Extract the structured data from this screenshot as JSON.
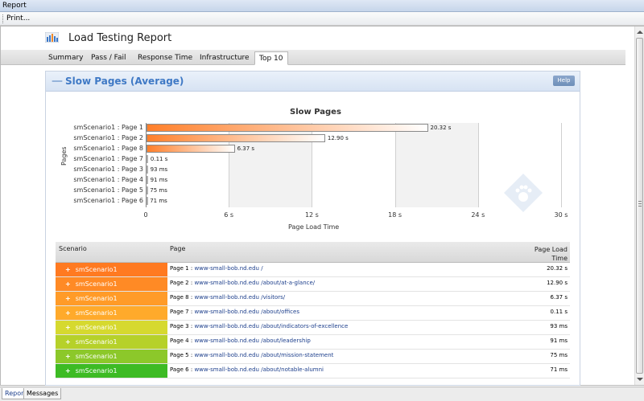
{
  "window": {
    "title": "Report"
  },
  "toolbar": {
    "print_label": "Print..."
  },
  "report": {
    "title": "Load Testing Report"
  },
  "tabs": [
    {
      "label": "Summary"
    },
    {
      "label": "Pass / Fail"
    },
    {
      "label": "Response Time"
    },
    {
      "label": "Infrastructure"
    },
    {
      "label": "Top 10"
    }
  ],
  "panel": {
    "title": "Slow Pages (Average)",
    "help_label": "Help",
    "collapse_symbol": "—"
  },
  "chart_data": {
    "type": "bar",
    "title": "Slow Pages",
    "xlabel": "Page Load Time",
    "ylabel": "Pages",
    "xlim": [
      0,
      30
    ],
    "x_ticks": [
      "0",
      "6 s",
      "12 s",
      "18 s",
      "24 s",
      "30 s"
    ],
    "categories": [
      "smScenario1 : Page 1",
      "smScenario1 : Page 2",
      "smScenario1 : Page 8",
      "smScenario1 : Page 7",
      "smScenario1 : Page 3",
      "smScenario1 : Page 4",
      "smScenario1 : Page 5",
      "smScenario1 : Page 6"
    ],
    "values": [
      20.32,
      12.9,
      6.37,
      0.11,
      0.093,
      0.091,
      0.075,
      0.071
    ],
    "value_labels": [
      "20.32 s",
      "12.90 s",
      "6.37 s",
      "0.11 s",
      "93 ms",
      "91 ms",
      "75 ms",
      "71 ms"
    ]
  },
  "table": {
    "headers": {
      "scenario": "Scenario",
      "page": "Page",
      "load_time_line1": "Page Load",
      "load_time_line2": "Time"
    },
    "rows": [
      {
        "scenario": "smScenario1",
        "page_prefix": "Page 1 : ",
        "url": "www-small-bob.nd.edu /",
        "time": "20.32 s",
        "color": "#ff7a21"
      },
      {
        "scenario": "smScenario1",
        "page_prefix": "Page 2 : ",
        "url": "www-small-bob.nd.edu /about/at-a-glance/",
        "time": "12.90 s",
        "color": "#ff8a25"
      },
      {
        "scenario": "smScenario1",
        "page_prefix": "Page 8 : ",
        "url": "www-small-bob.nd.edu /visitors/",
        "time": "6.37 s",
        "color": "#ff9b28"
      },
      {
        "scenario": "smScenario1",
        "page_prefix": "Page 7 : ",
        "url": "www-small-bob.nd.edu /about/offices",
        "time": "0.11 s",
        "color": "#ffaa2b"
      },
      {
        "scenario": "smScenario1",
        "page_prefix": "Page 3 : ",
        "url": "www-small-bob.nd.edu /about/indicators-of-excellence",
        "time": "93 ms",
        "color": "#d6d92f"
      },
      {
        "scenario": "smScenario1",
        "page_prefix": "Page 4 : ",
        "url": "www-small-bob.nd.edu /about/leadership",
        "time": "91 ms",
        "color": "#b6d12a"
      },
      {
        "scenario": "smScenario1",
        "page_prefix": "Page 5 : ",
        "url": "www-small-bob.nd.edu /about/mission-statement",
        "time": "75 ms",
        "color": "#8cc82a"
      },
      {
        "scenario": "smScenario1",
        "page_prefix": "Page 6 : ",
        "url": "www-small-bob.nd.edu /about/notable-alumni",
        "time": "71 ms",
        "color": "#3dbb24"
      }
    ],
    "plus_symbol": "+"
  },
  "bottom_tabs": [
    {
      "label": "Report"
    },
    {
      "label": "Messages"
    }
  ],
  "colors": {
    "bar_start": "#ff7f2a",
    "bar_end": "#ffffff",
    "accent": "#3f79c5"
  }
}
